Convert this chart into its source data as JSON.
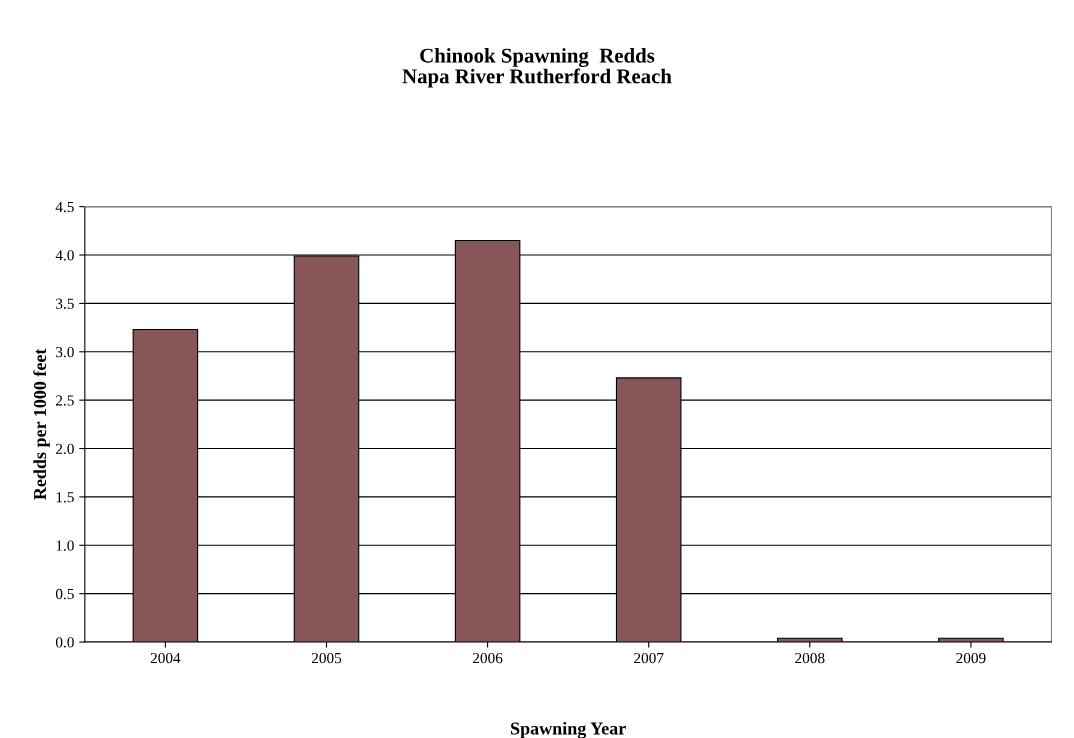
{
  "chart_data": {
    "type": "bar",
    "title": "Chinook Spawning  Redds\nNapa River Rutherford Reach",
    "xlabel": "Spawning Year",
    "ylabel": "Redds per 1000 feet",
    "categories": [
      "2004",
      "2005",
      "2006",
      "2007",
      "2008",
      "2009"
    ],
    "values": [
      3.23,
      3.99,
      4.15,
      2.73,
      0.04,
      0.04
    ],
    "color": "#875659",
    "ylim": [
      0,
      4.5
    ],
    "yticks": [
      {
        "value": 0,
        "label": "0.0"
      },
      {
        "value": 0.5,
        "label": "0.5"
      },
      {
        "value": 1,
        "label": "1.0"
      },
      {
        "value": 1.5,
        "label": "1.5"
      },
      {
        "value": 2,
        "label": "2.0"
      },
      {
        "value": 2.5,
        "label": "2.5"
      },
      {
        "value": 3,
        "label": "3.0"
      },
      {
        "value": 3.5,
        "label": "3.5"
      },
      {
        "value": 4,
        "label": "4.0"
      },
      {
        "value": 4.5,
        "label": "4.5"
      }
    ],
    "grid": "y"
  }
}
